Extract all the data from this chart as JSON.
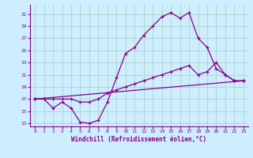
{
  "xlabel": "Windchill (Refroidissement éolien,°C)",
  "bg_color": "#cceeff",
  "grid_color": "#aaccbb",
  "line_color": "#880088",
  "xlim": [
    -0.5,
    23.5
  ],
  "ylim": [
    12.5,
    32.5
  ],
  "xticks": [
    0,
    1,
    2,
    3,
    4,
    5,
    6,
    7,
    8,
    9,
    10,
    11,
    12,
    13,
    14,
    15,
    16,
    17,
    18,
    19,
    20,
    21,
    22,
    23
  ],
  "yticks": [
    13,
    15,
    17,
    19,
    21,
    23,
    25,
    27,
    29,
    31
  ],
  "line1_x": [
    0,
    1,
    2,
    3,
    4,
    5,
    6,
    7,
    8,
    9,
    10,
    11,
    12,
    13,
    14,
    15,
    16,
    17,
    18,
    19,
    20,
    21,
    22,
    23
  ],
  "line1_y": [
    17,
    17,
    15.5,
    16.5,
    15.5,
    13.2,
    13.0,
    13.5,
    16.5,
    20.5,
    24.5,
    25.5,
    27.5,
    29.0,
    30.5,
    31.2,
    30.3,
    31.2,
    27.0,
    25.5,
    22.0,
    21.0,
    20.0,
    20.0
  ],
  "line2_x": [
    0,
    1,
    2,
    3,
    4,
    5,
    6,
    7,
    8,
    9,
    10,
    11,
    12,
    13,
    14,
    15,
    16,
    17,
    18,
    19,
    20,
    21,
    22,
    23
  ],
  "line2_y": [
    17,
    17,
    17,
    17,
    17,
    16.5,
    16.5,
    17,
    18,
    18.5,
    19,
    19.5,
    20,
    20.5,
    21,
    21.5,
    22,
    22.5,
    21,
    21.5,
    23,
    21,
    20,
    20
  ],
  "line3_x": [
    0,
    23
  ],
  "line3_y": [
    17,
    20
  ]
}
